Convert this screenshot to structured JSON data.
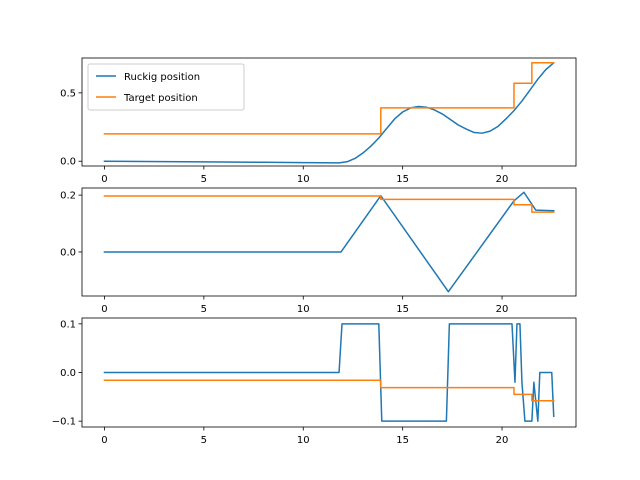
{
  "chart_data": [
    {
      "type": "line",
      "xlim": [
        -1.13,
        23.72
      ],
      "ylim": [
        -0.035,
        0.755
      ],
      "xticks": [
        0,
        5,
        10,
        15,
        20
      ],
      "yticks": [
        0.0,
        0.5
      ],
      "ytick_labels": [
        "0.0",
        "0.5"
      ],
      "legend": {
        "placement": "upper-left",
        "entries": [
          "Ruckig position",
          "Target position"
        ]
      },
      "series": [
        {
          "name": "Ruckig position",
          "color": "#1f77b4",
          "x": [
            0,
            2,
            4,
            6,
            8,
            10,
            11,
            11.8,
            12.2,
            12.6,
            13.0,
            13.4,
            13.8,
            14.2,
            14.6,
            15.0,
            15.4,
            15.8,
            16.2,
            16.6,
            17.0,
            17.4,
            17.8,
            18.2,
            18.6,
            19.0,
            19.4,
            19.8,
            20.2,
            20.6,
            21.0,
            21.4,
            21.8,
            22.2,
            22.6
          ],
          "y": [
            0.0,
            -0.002,
            -0.004,
            -0.006,
            -0.008,
            -0.01,
            -0.011,
            -0.012,
            -0.004,
            0.02,
            0.06,
            0.11,
            0.17,
            0.24,
            0.31,
            0.36,
            0.39,
            0.4,
            0.395,
            0.375,
            0.345,
            0.305,
            0.265,
            0.235,
            0.21,
            0.205,
            0.22,
            0.255,
            0.31,
            0.37,
            0.44,
            0.52,
            0.6,
            0.67,
            0.72
          ]
        },
        {
          "name": "Target position",
          "color": "#ff7f0e",
          "x": [
            0,
            13.9,
            13.9,
            20.6,
            20.6,
            21.5,
            21.5,
            22.6
          ],
          "y": [
            0.2,
            0.2,
            0.39,
            0.39,
            0.57,
            0.57,
            0.72,
            0.72
          ]
        }
      ]
    },
    {
      "type": "line",
      "xlim": [
        -1.13,
        23.72
      ],
      "ylim": [
        -0.155,
        0.225
      ],
      "xticks": [
        0,
        5,
        10,
        15,
        20
      ],
      "yticks": [
        0.0,
        0.2
      ],
      "ytick_labels": [
        "0.0",
        "0.2"
      ],
      "series": [
        {
          "color": "#1f77b4",
          "x": [
            0,
            11.9,
            13.9,
            17.3,
            20.6,
            21.1,
            21.7,
            22.6
          ],
          "y": [
            0.0,
            0.0,
            0.198,
            -0.14,
            0.18,
            0.21,
            0.147,
            0.145
          ]
        },
        {
          "color": "#ff7f0e",
          "x": [
            0,
            13.9,
            13.9,
            20.6,
            20.6,
            21.5,
            21.5,
            22.6
          ],
          "y": [
            0.197,
            0.197,
            0.185,
            0.185,
            0.166,
            0.166,
            0.14,
            0.14
          ]
        }
      ]
    },
    {
      "type": "line",
      "xlim": [
        -1.13,
        23.72
      ],
      "ylim": [
        -0.112,
        0.112
      ],
      "xticks": [
        0,
        5,
        10,
        15,
        20
      ],
      "yticks": [
        -0.1,
        0.0,
        0.1
      ],
      "ytick_labels": [
        "−0.1",
        "0.0",
        "0.1"
      ],
      "series": [
        {
          "color": "#1f77b4",
          "x": [
            0,
            11.8,
            11.95,
            13.8,
            13.95,
            17.2,
            17.35,
            20.5,
            20.65,
            20.75,
            20.9,
            21.0,
            21.15,
            21.5,
            21.6,
            21.8,
            21.9,
            22.0,
            22.5,
            22.6
          ],
          "y": [
            0.0,
            0.0,
            0.1,
            0.1,
            -0.1,
            -0.1,
            0.1,
            0.1,
            -0.02,
            0.1,
            0.1,
            -0.02,
            -0.1,
            -0.1,
            -0.02,
            -0.1,
            0.0,
            0.0,
            0.0,
            -0.09
          ]
        },
        {
          "color": "#ff7f0e",
          "x": [
            0,
            13.9,
            13.9,
            20.6,
            20.6,
            21.5,
            21.5,
            22.6
          ],
          "y": [
            -0.016,
            -0.016,
            -0.031,
            -0.031,
            -0.045,
            -0.045,
            -0.058,
            -0.058
          ]
        }
      ]
    }
  ]
}
